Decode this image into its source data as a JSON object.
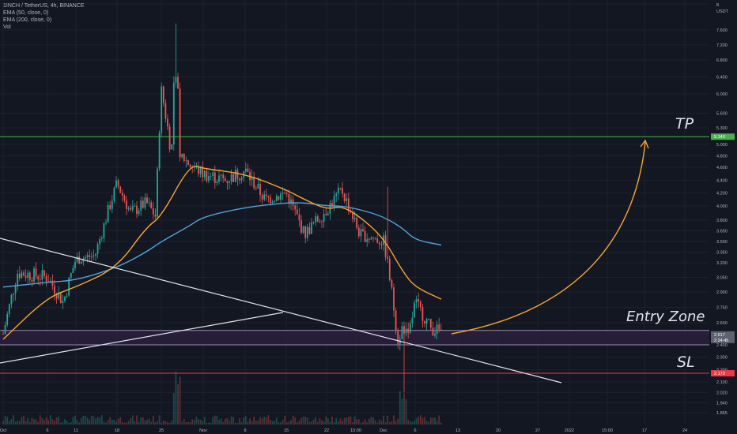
{
  "legend": {
    "symbol": "1INCH / TetherUS, 4h, BINANCE",
    "ema50": "EMA (50, close, 0)",
    "ema200": "EMA (200, close, 0)",
    "vol": "Vol"
  },
  "annotations": {
    "tp_label": "TP",
    "entry_label": "Entry Zone",
    "sl_label": "SL"
  },
  "price_tags": {
    "tp": "5.140",
    "entry": "2.517",
    "entry_sub": "2:24:45",
    "sl": "2.170"
  },
  "colors": {
    "background": "#131722",
    "grid": "#1e222d",
    "axis_text": "#b2b5be",
    "up": "#26a69a",
    "down": "#ef5350",
    "ema50": "#f7a531",
    "ema200": "#4fa3d9",
    "tp_line": "#4caf50",
    "sl_line": "#f23645",
    "entry_zone": "#2a1f3d",
    "projection": "#f7a531",
    "trendline": "#e0e3eb"
  },
  "chart_data": {
    "type": "line",
    "y_axis_unit": "USDT",
    "y_ticks": [
      "8",
      "7.600",
      "7.200",
      "6.800",
      "6.400",
      "6.000",
      "5.600",
      "5.300",
      "5.000",
      "4.800",
      "4.600",
      "4.400",
      "4.200",
      "4.000",
      "3.800",
      "3.650",
      "3.500",
      "3.350",
      "3.200",
      "3.050",
      "2.900",
      "2.750",
      "2.600",
      "2.500",
      "2.400",
      "2.300",
      "2.200",
      "2.100",
      "2.020",
      "1.940",
      "1.865"
    ],
    "x_ticks": [
      "Oct",
      "6",
      "11",
      "18",
      "25",
      "Nov",
      "8",
      "15",
      "22",
      "15:00",
      "Dec",
      "6",
      "13",
      "20",
      "27",
      "2022",
      "15:00",
      "17",
      "24"
    ],
    "levels": {
      "tp": 5.14,
      "entry_low": 2.4,
      "entry_high": 2.53,
      "sl": 2.17
    },
    "series": [
      {
        "name": "EMA (50, close, 0)",
        "x": [
          "Oct 1",
          "Oct 6",
          "Oct 11",
          "Oct 18",
          "Oct 22",
          "Oct 25",
          "Oct 28",
          "Nov 1",
          "Nov 8",
          "Nov 15",
          "Nov 18",
          "Nov 22",
          "Nov 25",
          "Nov 28",
          "Dec 1",
          "Dec 4",
          "Dec 6",
          "Dec 8"
        ],
        "values": [
          2.45,
          2.85,
          2.95,
          3.15,
          3.7,
          3.85,
          4.65,
          4.58,
          4.5,
          4.25,
          4.1,
          3.95,
          4.0,
          3.85,
          3.55,
          3.1,
          2.95,
          2.83
        ]
      },
      {
        "name": "EMA (200, close, 0)",
        "x": [
          "Oct 1",
          "Oct 6",
          "Oct 11",
          "Oct 18",
          "Oct 22",
          "Oct 25",
          "Oct 28",
          "Nov 1",
          "Nov 8",
          "Nov 15",
          "Nov 18",
          "Nov 22",
          "Nov 25",
          "Nov 28",
          "Dec 1",
          "Dec 4",
          "Dec 6",
          "Dec 8"
        ],
        "values": [
          2.95,
          3.0,
          3.02,
          3.15,
          3.35,
          3.5,
          3.72,
          3.85,
          3.98,
          4.05,
          4.05,
          4.0,
          4.0,
          3.95,
          3.85,
          3.68,
          3.52,
          3.45
        ]
      },
      {
        "name": "Price (approx. close)",
        "x": [
          "Oct 1",
          "Oct 4",
          "Oct 6",
          "Oct 9",
          "Oct 11",
          "Oct 14",
          "Oct 18",
          "Oct 20",
          "Oct 22",
          "Oct 24",
          "Oct 25",
          "Oct 26",
          "Oct 28",
          "Nov 1",
          "Nov 4",
          "Nov 8",
          "Nov 11",
          "Nov 15",
          "Nov 18",
          "Nov 22",
          "Nov 25",
          "Nov 28",
          "Dec 1",
          "Dec 3",
          "Dec 4",
          "Dec 5",
          "Dec 6",
          "Dec 7",
          "Dec 8"
        ],
        "values": [
          2.5,
          3.1,
          3.05,
          2.8,
          3.25,
          3.3,
          4.35,
          3.9,
          4.05,
          3.85,
          6.1,
          5.0,
          4.65,
          4.5,
          4.4,
          4.55,
          4.1,
          4.2,
          3.6,
          3.95,
          4.25,
          3.6,
          3.5,
          2.45,
          2.55,
          2.45,
          2.8,
          2.55,
          2.52
        ]
      }
    ]
  }
}
